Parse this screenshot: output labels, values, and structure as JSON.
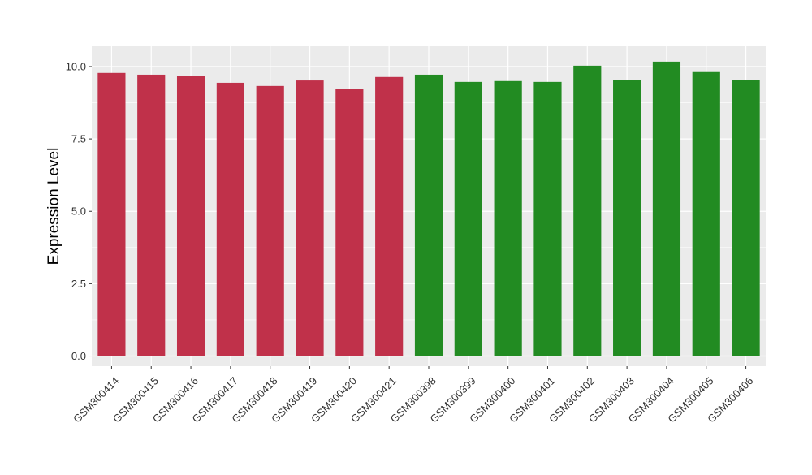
{
  "chart_data": {
    "type": "bar",
    "title": "",
    "xlabel": "",
    "ylabel": "Expression Level",
    "ylim": [
      -0.35,
      10.7
    ],
    "yticks": [
      0.0,
      2.5,
      5.0,
      7.5,
      10.0
    ],
    "ytick_labels": [
      "0.0",
      "2.5",
      "5.0",
      "7.5",
      "10.0"
    ],
    "grid": true,
    "legend": "none",
    "categories": [
      "GSM300414",
      "GSM300415",
      "GSM300416",
      "GSM300417",
      "GSM300418",
      "GSM300419",
      "GSM300420",
      "GSM300421",
      "GSM300398",
      "GSM300399",
      "GSM300400",
      "GSM300401",
      "GSM300402",
      "GSM300403",
      "GSM300404",
      "GSM300405",
      "GSM300406"
    ],
    "values": [
      9.78,
      9.72,
      9.67,
      9.44,
      9.33,
      9.52,
      9.24,
      9.64,
      9.72,
      9.47,
      9.5,
      9.47,
      10.03,
      9.53,
      10.17,
      9.81,
      9.53
    ],
    "bar_colors": [
      "#c0314a",
      "#c0314a",
      "#c0314a",
      "#c0314a",
      "#c0314a",
      "#c0314a",
      "#c0314a",
      "#c0314a",
      "#228b22",
      "#228b22",
      "#228b22",
      "#228b22",
      "#228b22",
      "#228b22",
      "#228b22",
      "#228b22",
      "#228b22"
    ],
    "panel_background": "#ebebeb",
    "grid_color": "#ffffff"
  }
}
